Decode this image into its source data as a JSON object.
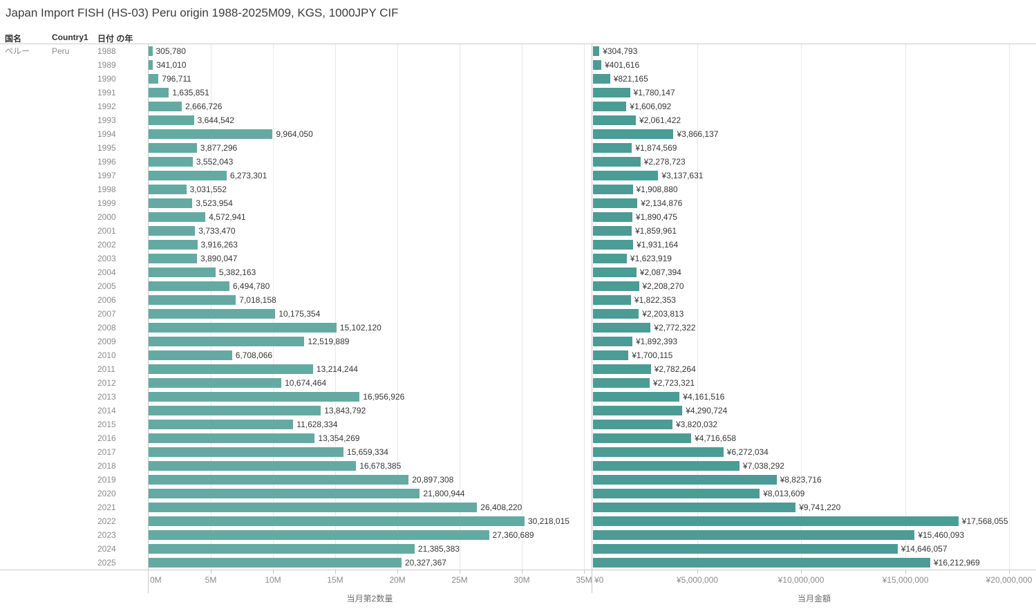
{
  "title": "Japan Import FISH (HS-03) Peru origin 1988-2025M09, KGS, 1000JPY CIF",
  "table": {
    "columns": {
      "country_jp": "国名",
      "country_en": "Country1",
      "year": "日付 の年"
    },
    "row_group": {
      "country_jp": "ペルー",
      "country_en": "Peru"
    }
  },
  "chart_data": {
    "type": "bar",
    "orientation": "horizontal",
    "title": "Japan Import FISH (HS-03) Peru origin 1988-2025M09, KGS, 1000JPY CIF",
    "grid": true,
    "legend_position": "none",
    "categories": [
      1988,
      1989,
      1990,
      1991,
      1992,
      1993,
      1994,
      1995,
      1996,
      1997,
      1998,
      1999,
      2000,
      2001,
      2002,
      2003,
      2004,
      2005,
      2006,
      2007,
      2008,
      2009,
      2010,
      2011,
      2012,
      2013,
      2014,
      2015,
      2016,
      2017,
      2018,
      2019,
      2020,
      2021,
      2022,
      2023,
      2024,
      2025
    ],
    "series": [
      {
        "name": "当月第2数量",
        "unit": "KGS",
        "value_prefix": "",
        "bar_color": "#64aaa2",
        "xlim": [
          0,
          35600000
        ],
        "tick_interval": 5000000,
        "ticks": [
          "0M",
          "5M",
          "10M",
          "15M",
          "20M",
          "25M",
          "30M",
          "35M"
        ],
        "values": [
          305780,
          341010,
          796711,
          1635851,
          2666726,
          3644542,
          9964050,
          3877296,
          3552043,
          6273301,
          3031552,
          3523954,
          4572941,
          3733470,
          3916263,
          3890047,
          5382163,
          6494780,
          7018158,
          10175354,
          15102120,
          12519889,
          6708066,
          13214244,
          10674464,
          16956926,
          13843792,
          11628334,
          13354269,
          15659334,
          16678385,
          20897308,
          21800944,
          26408220,
          30218015,
          27360689,
          21385383,
          20327367
        ]
      },
      {
        "name": "当月金額",
        "unit": "1000JPY",
        "value_prefix": "¥",
        "bar_color": "#4a9c95",
        "xlim": [
          0,
          21300000
        ],
        "tick_interval": 5000000,
        "ticks": [
          "¥0",
          "¥5,000,000",
          "¥10,000,000",
          "¥15,000,000",
          "¥20,000,000"
        ],
        "values": [
          304793,
          401616,
          821165,
          1780147,
          1606092,
          2061422,
          3866137,
          1874569,
          2278723,
          3137631,
          1908880,
          2134876,
          1890475,
          1859961,
          1931164,
          1623919,
          2087394,
          2208270,
          1822353,
          2203813,
          2772322,
          1892393,
          1700115,
          2782264,
          2723321,
          4161516,
          4290724,
          3820032,
          4716658,
          6272034,
          7038292,
          8823716,
          8013609,
          9741220,
          17568055,
          15460093,
          14646057,
          16212969
        ]
      }
    ]
  }
}
